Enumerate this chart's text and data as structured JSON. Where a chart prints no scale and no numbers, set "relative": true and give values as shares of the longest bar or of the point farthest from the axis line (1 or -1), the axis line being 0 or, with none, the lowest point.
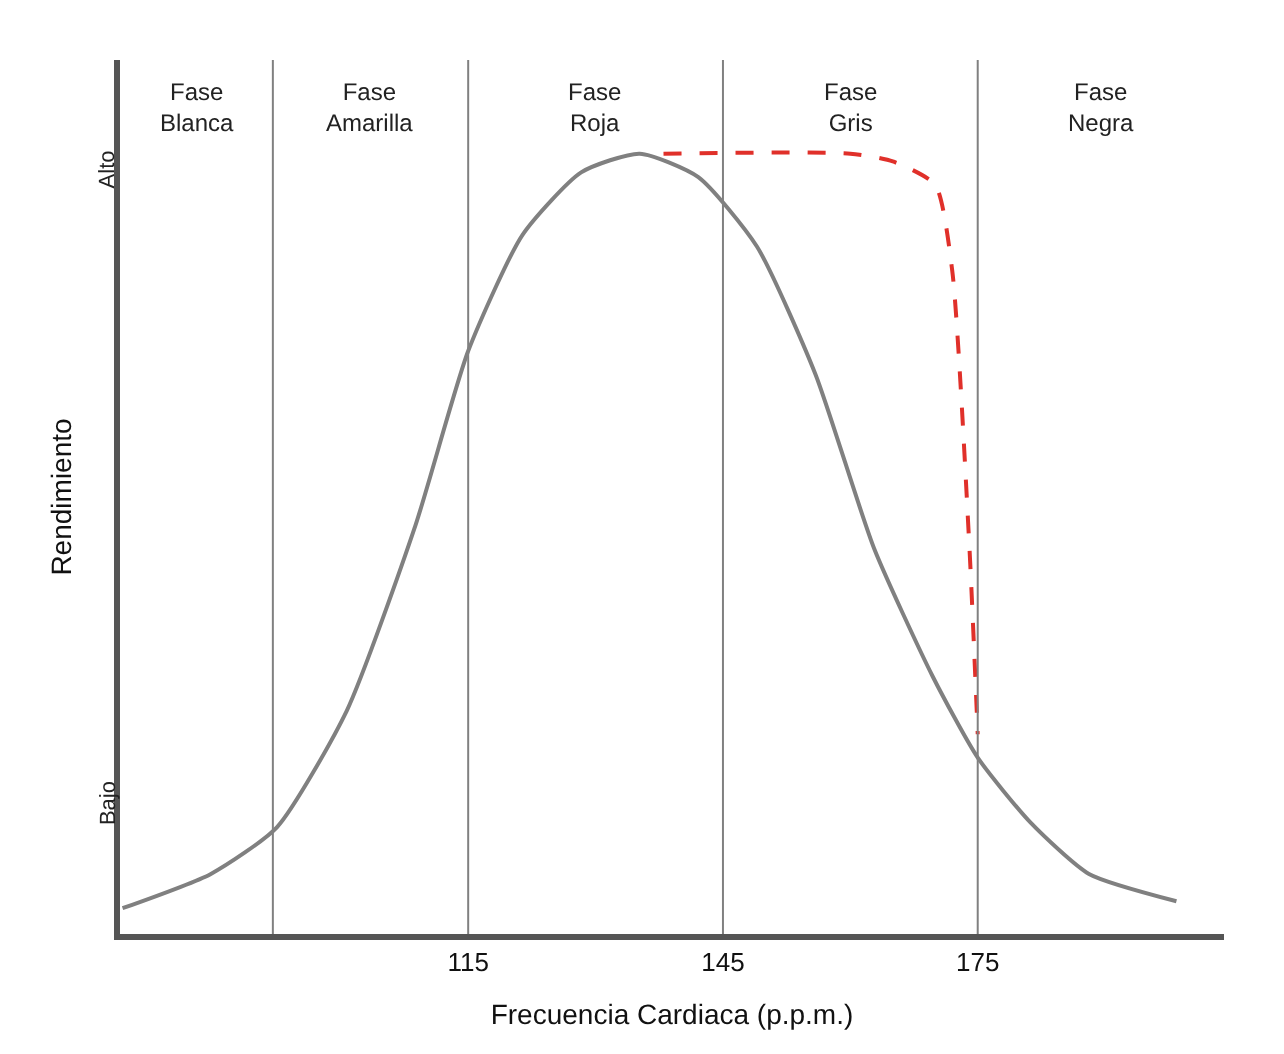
{
  "chart_data": {
    "type": "line",
    "relative": true,
    "xlabel": "Frecuencia Cardiaca (p.p.m.)",
    "ylabel": "Rendimiento",
    "xlim": [
      74,
      204
    ],
    "xticks": [
      115,
      145,
      175
    ],
    "series": [
      {
        "color": "#808080",
        "line_style": "solid",
        "x": [
          74.3,
          84.7,
          92.5,
          100.7,
          108.8,
          115,
          121.4,
          128.3,
          135.2,
          142.1,
          149,
          155.9,
          162.8,
          169.7,
          175,
          181.2,
          188.1,
          198.4
        ],
        "values": [
          0.033,
          0.077,
          0.137,
          0.286,
          0.524,
          0.747,
          0.896,
          0.976,
          1.0,
          0.97,
          0.881,
          0.717,
          0.494,
          0.33,
          0.226,
          0.143,
          0.077,
          0.042
        ]
      },
      {
        "color": "#e0302a",
        "line_style": "dashed",
        "x": [
          138,
          160,
          165,
          170,
          172,
          174,
          175
        ],
        "values": [
          1.0,
          1.0,
          0.99,
          0.96,
          0.85,
          0.5,
          0.256
        ]
      }
    ],
    "ref_lines": [
      {
        "axis": "x",
        "value": 92,
        "color": "#808080"
      },
      {
        "axis": "x",
        "value": 115,
        "color": "#808080"
      },
      {
        "axis": "x",
        "value": 145,
        "color": "#808080"
      },
      {
        "axis": "x",
        "value": 175,
        "color": "#808080"
      }
    ],
    "annotations": [
      "Alto",
      "Bajo",
      "Fase\nBlanca",
      "Fase\nAmarilla",
      "Fase\nRoja",
      "Fase\nGris",
      "Fase\nNegra"
    ]
  }
}
